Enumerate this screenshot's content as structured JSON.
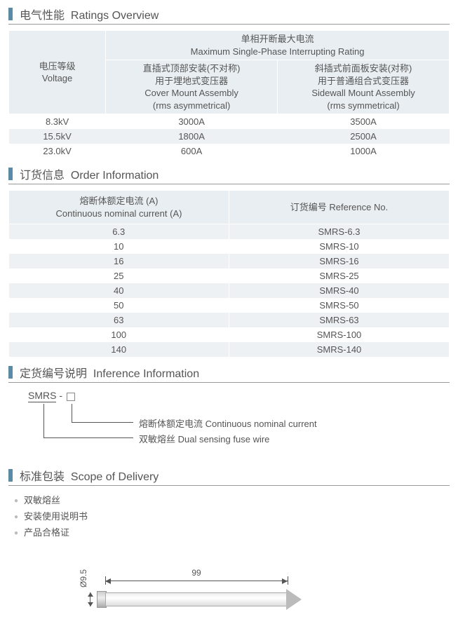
{
  "sections": {
    "ratings": {
      "zh": "电气性能",
      "en": "Ratings Overview"
    },
    "order": {
      "zh": "订货信息",
      "en": "Order Information"
    },
    "inference": {
      "zh": "定货编号说明",
      "en": "Inference Information"
    },
    "delivery": {
      "zh": "标准包装",
      "en": "Scope of Delivery"
    }
  },
  "ratings_table": {
    "header_top_zh": "单相开断最大电流",
    "header_top_en": "Maximum Single-Phase Interrupting Rating",
    "col_voltage_zh": "电压等级",
    "col_voltage_en": "Voltage",
    "col_cover_l1": "直插式顶部安装(不对称)",
    "col_cover_l2": "用于埋地式变压器",
    "col_cover_l3": "Cover Mount Assembly",
    "col_cover_l4": "(rms asymmetrical)",
    "col_side_l1": "斜插式前面板安装(对称)",
    "col_side_l2": "用于普通组合式变压器",
    "col_side_l3": "Sidewall Mount Assembly",
    "col_side_l4": "(rms symmetrical)",
    "rows": [
      {
        "v": "8.3kV",
        "a": "3000A",
        "b": "3500A"
      },
      {
        "v": "15.5kV",
        "a": "1800A",
        "b": "2500A"
      },
      {
        "v": "23.0kV",
        "a": "600A",
        "b": "1000A"
      }
    ]
  },
  "order_table": {
    "col1_zh": "熔断体额定电流 (A)",
    "col1_en": "Continuous nominal current (A)",
    "col2": "订货编号 Reference No.",
    "rows": [
      {
        "c": "6.3",
        "r": "SMRS-6.3"
      },
      {
        "c": "10",
        "r": "SMRS-10"
      },
      {
        "c": "16",
        "r": "SMRS-16"
      },
      {
        "c": "25",
        "r": "SMRS-25"
      },
      {
        "c": "40",
        "r": "SMRS-40"
      },
      {
        "c": "50",
        "r": "SMRS-50"
      },
      {
        "c": "63",
        "r": "SMRS-63"
      },
      {
        "c": "100",
        "r": "SMRS-100"
      },
      {
        "c": "140",
        "r": "SMRS-140"
      }
    ]
  },
  "inference": {
    "code_prefix": "SMRS",
    "dash": " - ",
    "line1": "熔断体额定电流 Continuous nominal current",
    "line2": "双敏熔丝 Dual sensing fuse wire"
  },
  "delivery_items": [
    "双敏熔丝",
    "安装使用说明书",
    "产品合格证"
  ],
  "drawing": {
    "length_label": "99",
    "diameter_label": "Ø9.5"
  },
  "colors": {
    "accent_bar": "#5b8aa6",
    "header_bg": "#e8eef2",
    "row_alt": "#eef1f3",
    "text": "#555555",
    "rule": "#999999"
  }
}
